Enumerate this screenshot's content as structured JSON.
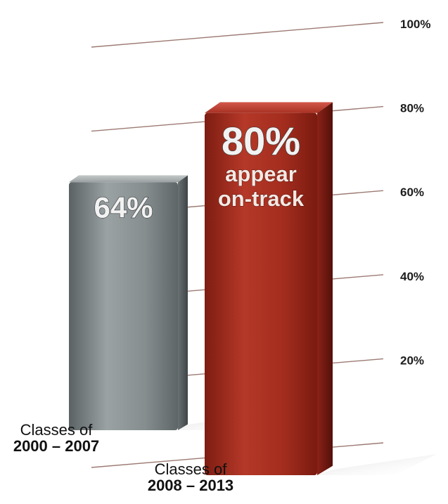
{
  "chart_data": {
    "type": "bar",
    "categories": [
      {
        "line1": "Classes of",
        "line2": "2000 – 2007"
      },
      {
        "line1": "Classes of",
        "line2": "2008 – 2013"
      }
    ],
    "values": [
      64,
      80
    ],
    "value_labels": [
      "64%",
      "80%"
    ],
    "annotation": {
      "bar_index": 1,
      "lines": [
        "appear",
        "on-track"
      ]
    },
    "y_ticks": [
      {
        "value": 20,
        "label": "20%"
      },
      {
        "value": 40,
        "label": "40%"
      },
      {
        "value": 60,
        "label": "60%"
      },
      {
        "value": 80,
        "label": "80%"
      },
      {
        "value": 100,
        "label": "100%"
      }
    ],
    "ylim": [
      0,
      100
    ],
    "grid": true,
    "colors": {
      "bar_1": "#7f8788",
      "bar_2": "#a52e1f",
      "grid": "#9c7a73"
    }
  }
}
